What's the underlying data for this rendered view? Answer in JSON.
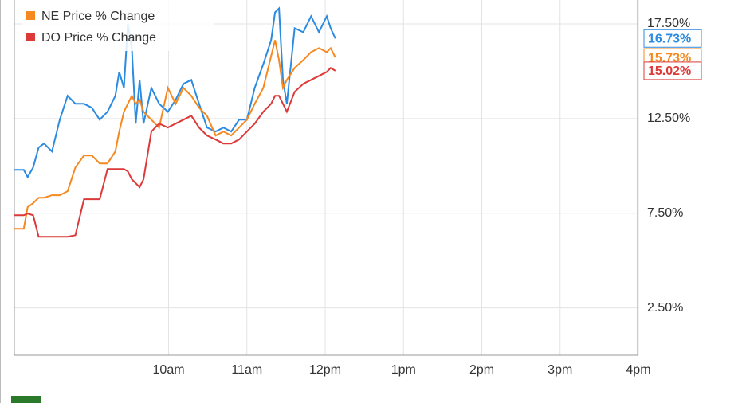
{
  "chart_data": {
    "type": "line",
    "x": [
      8.03,
      8.15,
      8.2,
      8.27,
      8.34,
      8.41,
      8.51,
      8.61,
      8.71,
      8.81,
      8.92,
      9.02,
      9.12,
      9.22,
      9.32,
      9.37,
      9.43,
      9.48,
      9.53,
      9.58,
      9.63,
      9.68,
      9.78,
      9.88,
      9.99,
      10.09,
      10.19,
      10.29,
      10.39,
      10.49,
      10.6,
      10.7,
      10.8,
      10.9,
      11.0,
      11.1,
      11.21,
      11.31,
      11.36,
      11.41,
      11.46,
      11.51,
      11.61,
      11.72,
      11.82,
      11.92,
      12.02,
      12.07,
      12.13
    ],
    "series": [
      {
        "color": "#2c8be0",
        "end_label": "16.73%",
        "values": [
          9.79,
          9.79,
          9.41,
          9.92,
          10.97,
          11.18,
          10.76,
          12.44,
          13.7,
          13.28,
          13.28,
          13.07,
          12.44,
          12.86,
          13.7,
          14.96,
          14.12,
          17.48,
          16.22,
          12.23,
          14.54,
          12.23,
          14.12,
          13.28,
          12.86,
          13.49,
          14.33,
          14.54,
          13.28,
          12.02,
          11.81,
          12.02,
          11.81,
          12.44,
          12.44,
          14.12,
          15.38,
          16.64,
          18.11,
          18.32,
          14.54,
          13.28,
          17.27,
          17.06,
          17.9,
          17.06,
          17.9,
          17.27,
          16.73
        ]
      },
      {
        "name": "NE Price % Change",
        "color": "#f5891f",
        "end_label": "15.73%",
        "values": [
          6.68,
          6.68,
          7.82,
          8.03,
          8.32,
          8.32,
          8.45,
          8.45,
          8.66,
          9.92,
          10.55,
          10.55,
          10.13,
          10.13,
          10.76,
          11.81,
          12.86,
          13.28,
          13.7,
          13.28,
          13.49,
          12.86,
          12.44,
          12.02,
          14.12,
          13.28,
          14.12,
          13.7,
          13.07,
          12.65,
          11.6,
          11.81,
          11.6,
          12.02,
          12.44,
          13.28,
          14.12,
          15.8,
          16.64,
          15.59,
          14.12,
          14.54,
          15.17,
          15.59,
          16.01,
          16.22,
          16.01,
          16.22,
          15.73
        ]
      },
      {
        "name": "DO Price % Change",
        "color": "#dc3939",
        "end_label": "15.02%",
        "values": [
          7.39,
          7.39,
          7.48,
          7.39,
          6.26,
          6.26,
          6.26,
          6.26,
          6.26,
          6.34,
          8.24,
          8.24,
          8.24,
          9.83,
          9.83,
          9.83,
          9.83,
          9.71,
          9.29,
          9.08,
          8.87,
          9.29,
          11.81,
          12.23,
          12.02,
          12.23,
          12.44,
          12.65,
          12.02,
          11.6,
          11.39,
          11.18,
          11.18,
          11.39,
          11.81,
          12.23,
          12.86,
          13.28,
          13.7,
          13.7,
          13.28,
          12.86,
          13.91,
          14.33,
          14.54,
          14.75,
          14.96,
          15.17,
          15.02
        ]
      }
    ],
    "xlim": [
      8.03,
      15.99
    ],
    "xticks": [
      {
        "value": 10,
        "label": "10am"
      },
      {
        "value": 11,
        "label": "11am"
      },
      {
        "value": 12,
        "label": "12pm"
      },
      {
        "value": 13,
        "label": "1pm"
      },
      {
        "value": 14,
        "label": "2pm"
      },
      {
        "value": 15,
        "label": "3pm"
      },
      {
        "value": 16,
        "label": "4pm"
      }
    ],
    "ylim": [
      0,
      18.76
    ],
    "yticks": [
      {
        "value": 2.5,
        "label": "2.50%"
      },
      {
        "value": 7.5,
        "label": "7.50%"
      },
      {
        "value": 12.5,
        "label": "12.50%"
      },
      {
        "value": 17.5,
        "label": "17.50%"
      }
    ],
    "grid": true,
    "legend": "top-left"
  }
}
